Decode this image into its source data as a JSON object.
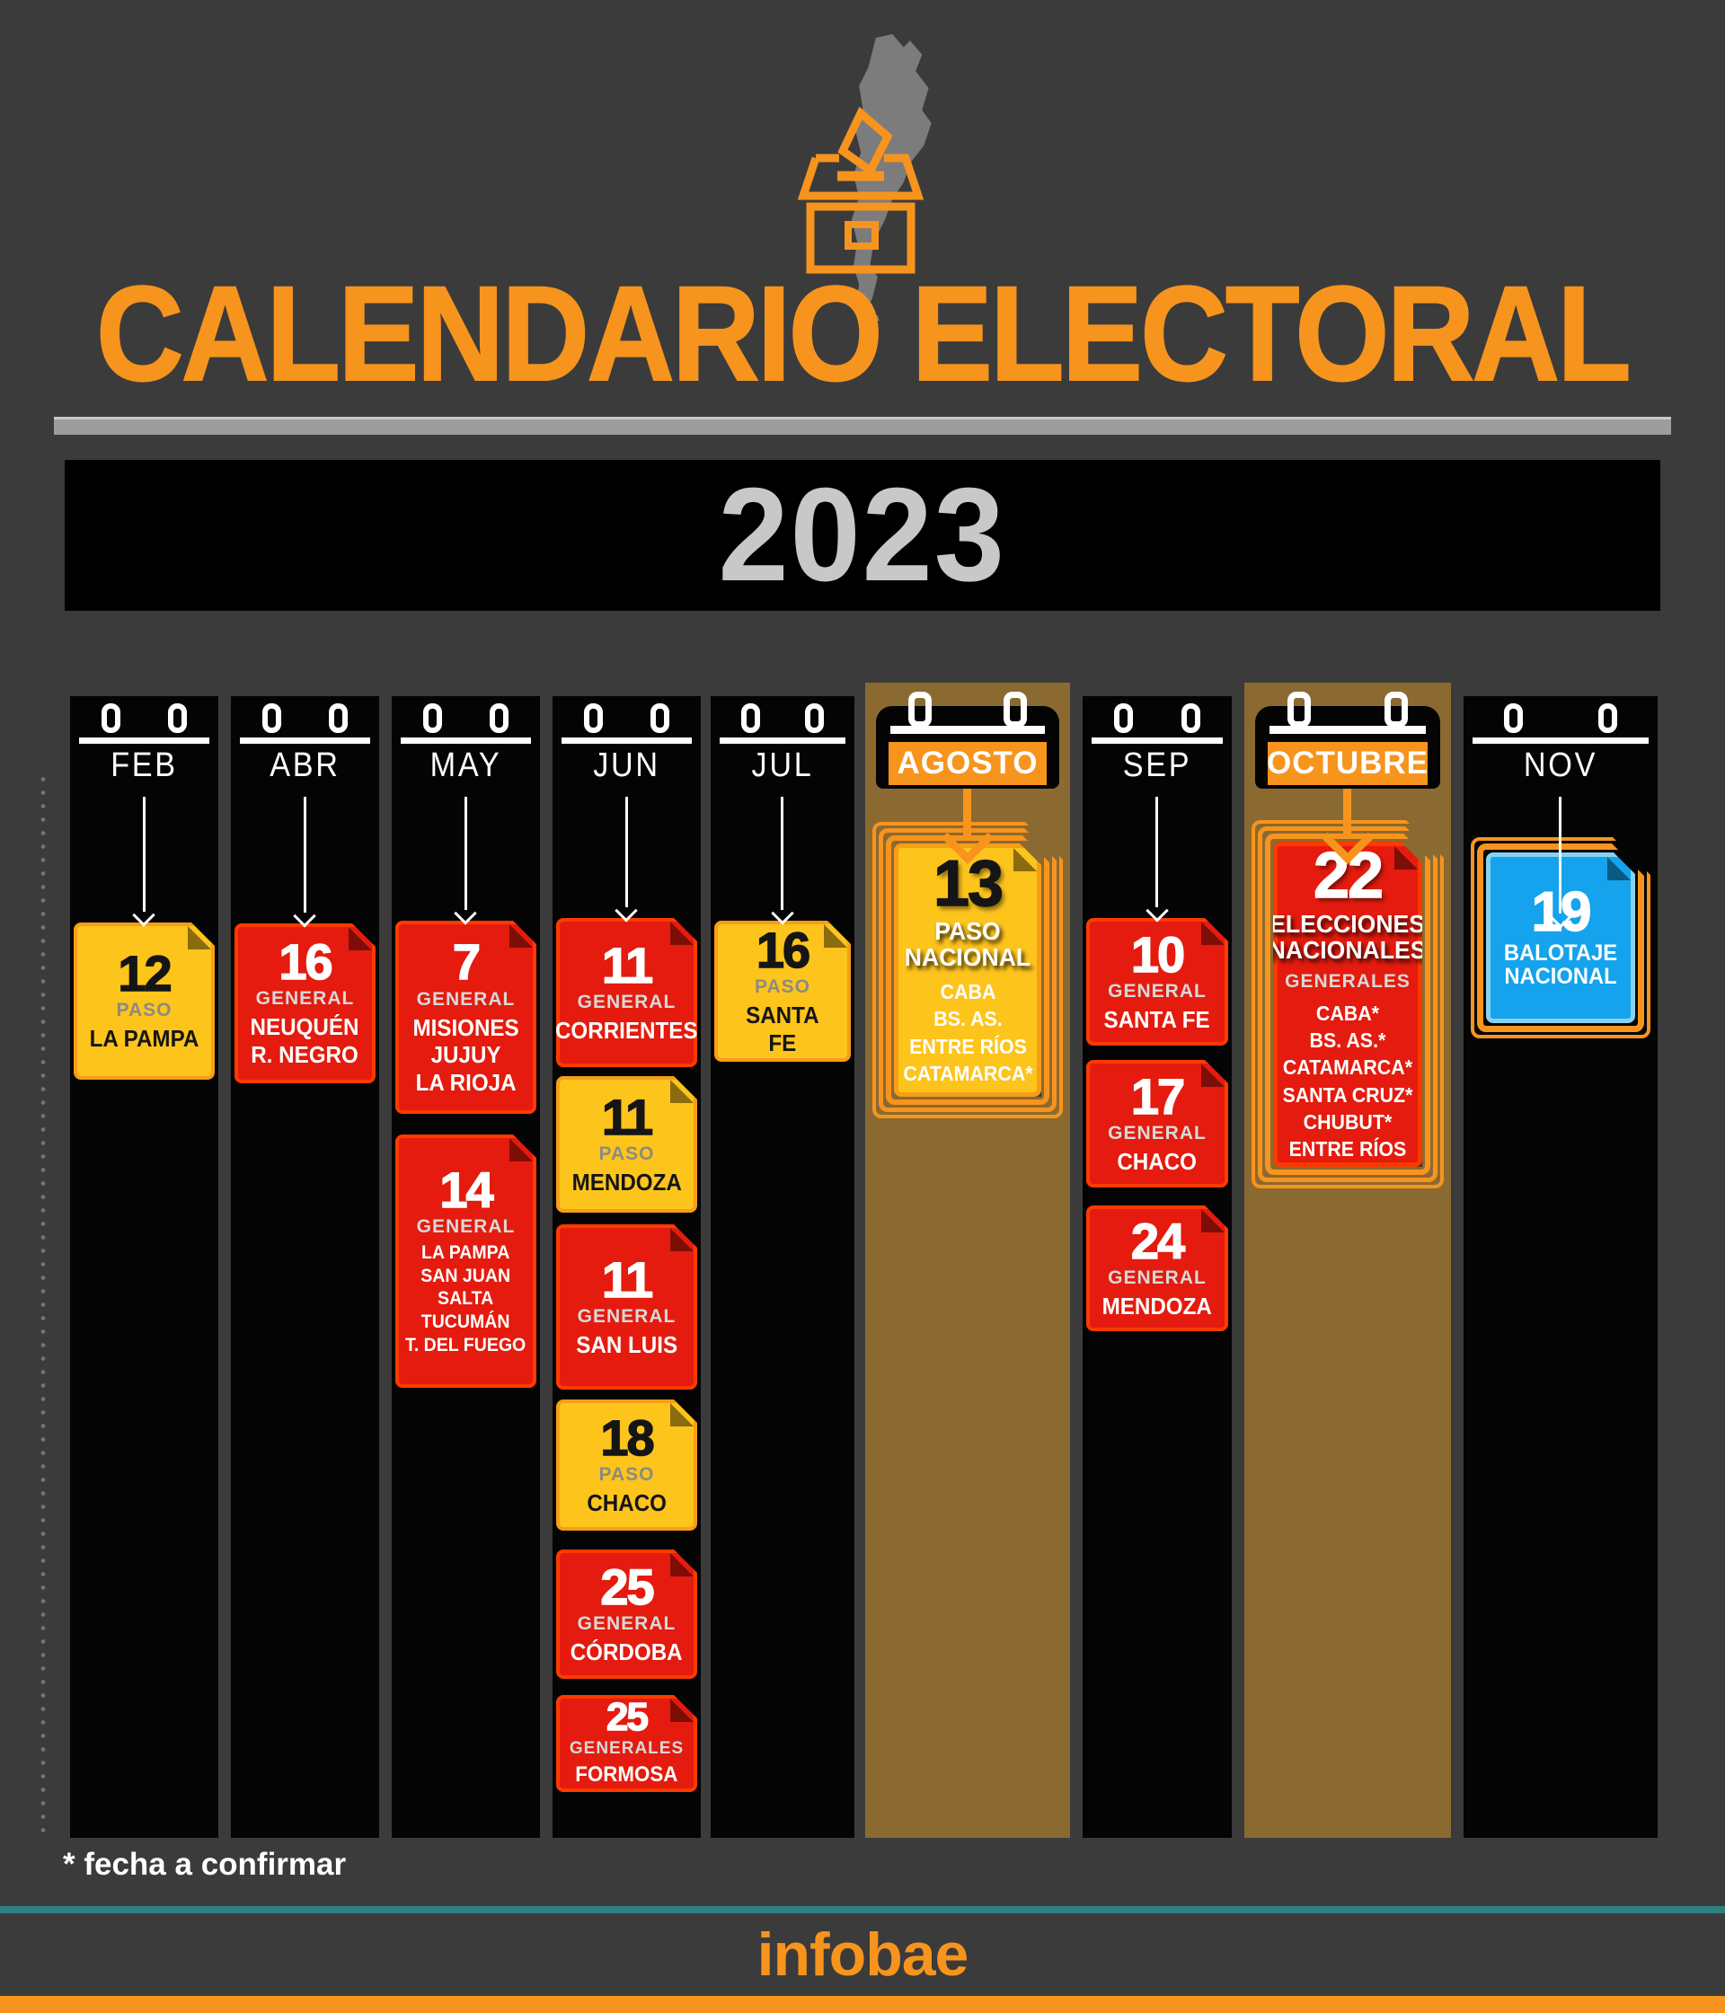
{
  "header": {
    "title": "CALENDARIO ELECTORAL",
    "year": "2023",
    "map_icon": "argentina-map",
    "ballot_icon": "ballot-box"
  },
  "footer": {
    "footnote": "*  fecha a confirmar",
    "brand": "infobae"
  },
  "colors": {
    "background": "#3b3b3b",
    "column_black": "#040404",
    "column_tan": "#8a6a31",
    "accent_orange": "#f7941d",
    "card_red": "#e41b0e",
    "card_red_border": "#fd3a00",
    "card_yellow": "#fdc41c",
    "card_yellow_border": "#f79e17",
    "card_blue": "#14a3ec",
    "card_blue_border": "#85d2f2",
    "year_text": "#c8c8c8",
    "teal_line": "#2e8080"
  },
  "columns": [
    {
      "month": "FEB",
      "highlight": false,
      "cards": [
        {
          "day": "12",
          "kind": "PASO",
          "names": [
            "LA PAMPA"
          ],
          "variant": "yellow"
        }
      ]
    },
    {
      "month": "ABR",
      "highlight": false,
      "cards": [
        {
          "day": "16",
          "kind": "GENERAL",
          "names": [
            "NEUQUÉN",
            "R. NEGRO"
          ],
          "variant": "red"
        }
      ]
    },
    {
      "month": "MAY",
      "highlight": false,
      "cards": [
        {
          "day": "7",
          "kind": "GENERAL",
          "names": [
            "MISIONES",
            "JUJUY",
            "LA RIOJA"
          ],
          "variant": "red"
        },
        {
          "day": "14",
          "kind": "GENERAL",
          "names": [
            "LA PAMPA",
            "SAN JUAN",
            "SALTA",
            "TUCUMÁN",
            "T. DEL FUEGO"
          ],
          "variant": "red"
        }
      ]
    },
    {
      "month": "JUN",
      "highlight": false,
      "cards": [
        {
          "day": "11",
          "kind": "GENERAL",
          "names": [
            "CORRIENTES"
          ],
          "variant": "red"
        },
        {
          "day": "11",
          "kind": "PASO",
          "names": [
            "MENDOZA"
          ],
          "variant": "yellow"
        },
        {
          "day": "11",
          "kind": "GENERAL",
          "names": [
            "SAN LUIS"
          ],
          "variant": "red"
        },
        {
          "day": "18",
          "kind": "PASO",
          "names": [
            "CHACO"
          ],
          "variant": "yellow"
        },
        {
          "day": "25",
          "kind": "GENERAL",
          "names": [
            "CÓRDOBA"
          ],
          "variant": "red"
        },
        {
          "day": "25",
          "kind": "GENERALES",
          "names": [
            "FORMOSA"
          ],
          "variant": "red"
        }
      ]
    },
    {
      "month": "JUL",
      "highlight": false,
      "cards": [
        {
          "day": "16",
          "kind": "PASO",
          "names": [
            "SANTA",
            "FE"
          ],
          "variant": "yellow"
        }
      ]
    },
    {
      "month": "AGOSTO",
      "highlight": true,
      "cards": [
        {
          "day": "13",
          "headline": "PASO NACIONAL",
          "names": [
            "CABA",
            "BS. AS.",
            "ENTRE RÍOS",
            "CATAMARCA*"
          ],
          "variant": "yellow",
          "framed": true
        }
      ]
    },
    {
      "month": "SEP",
      "highlight": false,
      "cards": [
        {
          "day": "10",
          "kind": "GENERAL",
          "names": [
            "SANTA FE"
          ],
          "variant": "red"
        },
        {
          "day": "17",
          "kind": "GENERAL",
          "names": [
            "CHACO"
          ],
          "variant": "red"
        },
        {
          "day": "24",
          "kind": "GENERAL",
          "names": [
            "MENDOZA"
          ],
          "variant": "red"
        }
      ]
    },
    {
      "month": "OCTUBRE",
      "highlight": true,
      "cards": [
        {
          "day": "22",
          "headline": "ELECCIONES NACIONALES",
          "kind": "GENERALES",
          "names": [
            "CABA*",
            "BS. AS.*",
            "CATAMARCA*",
            "SANTA CRUZ*",
            "CHUBUT*",
            "ENTRE RÍOS"
          ],
          "variant": "red",
          "framed": true
        }
      ]
    },
    {
      "month": "NOV",
      "highlight": false,
      "cards": [
        {
          "day": "19",
          "headline": "BALOTAJE NACIONAL",
          "names": [],
          "variant": "blue",
          "framed": true
        }
      ]
    }
  ]
}
